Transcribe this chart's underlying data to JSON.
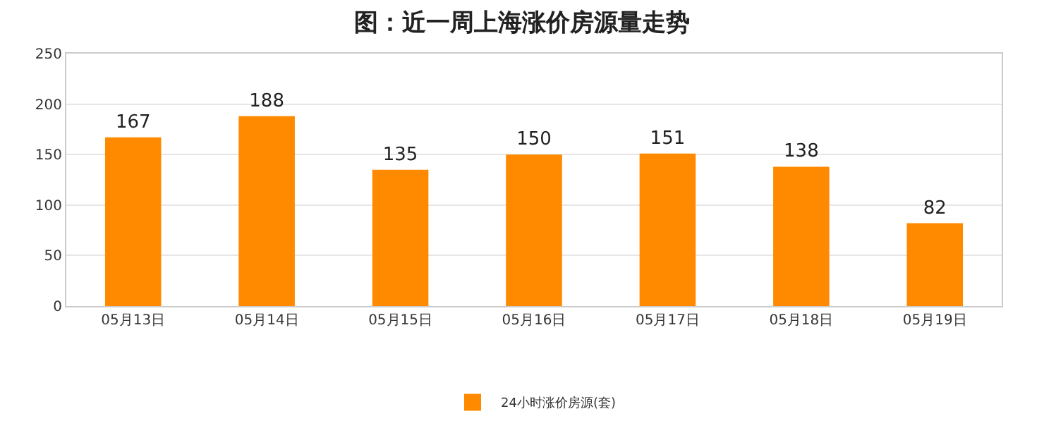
{
  "chart_data": {
    "type": "bar",
    "title": "图：近一周上海涨价房源量走势",
    "categories": [
      "05月13日",
      "05月14日",
      "05月15日",
      "05月16日",
      "05月17日",
      "05月18日",
      "05月19日"
    ],
    "series": [
      {
        "name": "24小时涨价房源(套)",
        "color": "#ff8a00",
        "values": [
          167,
          188,
          135,
          150,
          151,
          138,
          82
        ]
      }
    ],
    "ylim": [
      0,
      250
    ],
    "yticks": [
      0,
      50,
      100,
      150,
      200,
      250
    ],
    "grid": "y",
    "legend": "bottom",
    "data_labels": true
  }
}
